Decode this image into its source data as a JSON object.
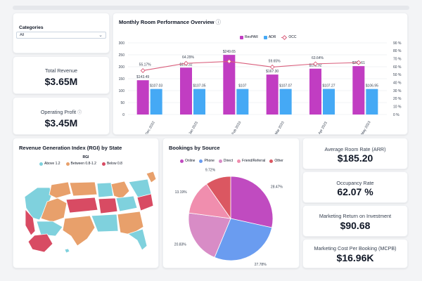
{
  "filters": {
    "title": "Categories",
    "selected": "All"
  },
  "kpis": {
    "total_revenue": {
      "label": "Total Revenue",
      "value": "$3.65M"
    },
    "operating_profit": {
      "label": "Operating Profit",
      "value": "$3.45M",
      "icon": "info-icon"
    },
    "arr": {
      "label": "Average Room Rate (ARR)",
      "value": "$185.20"
    },
    "occupancy": {
      "label": "Occupancy Rate",
      "value": "62.07 %"
    },
    "roi": {
      "label": "Marketing Return on Investment",
      "value": "$90.68"
    },
    "mcpb": {
      "label": "Marketing Cost Per Booking (MCPB)",
      "value": "$16.96K"
    }
  },
  "monthly": {
    "title": "Monthly Room Performance Overview",
    "icon": "info-icon"
  },
  "rgi": {
    "title": "Revenue Generation Index (RGI) by State",
    "legend_title": "RGI",
    "legend": [
      {
        "label": "Above 1.2",
        "color": "#7fd1dd"
      },
      {
        "label": "Between 0.8-1.2",
        "color": "#e8a06b"
      },
      {
        "label": "Below 0.8",
        "color": "#d84b63"
      }
    ]
  },
  "bookings": {
    "title": "Bookings by Source",
    "legend": [
      {
        "label": "Online",
        "color": "#c04bc0"
      },
      {
        "label": "Phone",
        "color": "#6a9cf0"
      },
      {
        "label": "Direct",
        "color": "#d88cc6"
      },
      {
        "label": "Friend/Referral",
        "color": "#f08eae"
      },
      {
        "label": "Other",
        "color": "#db5761"
      }
    ]
  },
  "chart_data": [
    {
      "type": "bar",
      "title": "Monthly Room Performance Overview",
      "categories": [
        "Dec 2022",
        "Jan 2023",
        "Feb 2023",
        "Mar 2023",
        "Apr 2023",
        "May 2023"
      ],
      "ylim": [
        0,
        300
      ],
      "y_ticks": [
        0,
        50,
        100,
        150,
        200,
        250,
        300
      ],
      "y2lim": [
        0,
        90
      ],
      "y2_ticks": [
        "0 %",
        "10 %",
        "20 %",
        "30 %",
        "40 %",
        "50 %",
        "60 %",
        "70 %",
        "80 %",
        "90 %"
      ],
      "grid": true,
      "legend_position": "top-right",
      "series": [
        {
          "name": "RevPAR",
          "kind": "bar",
          "color": "#c13dc2",
          "values": [
            143.49,
            196.32,
            249.65,
            167.3,
            191.92,
            202.61
          ],
          "labels": [
            "$143.49",
            "$196.32",
            "$249.65",
            "$167.30",
            "$191.92",
            "$202.61"
          ]
        },
        {
          "name": "ADR",
          "kind": "bar",
          "color": "#45a9f5",
          "values": [
            107.03,
            107.05,
            107,
            107.07,
            107.27,
            106.95
          ],
          "labels": [
            "$107.03",
            "$107.05",
            "$107",
            "$107.07",
            "$107.27",
            "$106.95"
          ]
        },
        {
          "name": "OCC",
          "kind": "line",
          "color": "#d95d7b",
          "values": [
            55.17,
            64.29,
            66.7,
            59.65,
            63.64,
            65.2
          ],
          "labels": [
            "55.17%",
            "64.29%",
            "",
            "59.65%",
            "63.64%",
            ""
          ]
        }
      ]
    },
    {
      "type": "pie",
      "title": "Bookings by Source",
      "categories": [
        "Online",
        "Phone",
        "Direct",
        "Friend/Referral",
        "Other"
      ],
      "values": [
        28.47,
        27.78,
        20.83,
        13.19,
        9.72
      ],
      "labels": [
        "28.47%",
        "27.78%",
        "20.83%",
        "13.19%",
        "9.72%"
      ]
    }
  ]
}
